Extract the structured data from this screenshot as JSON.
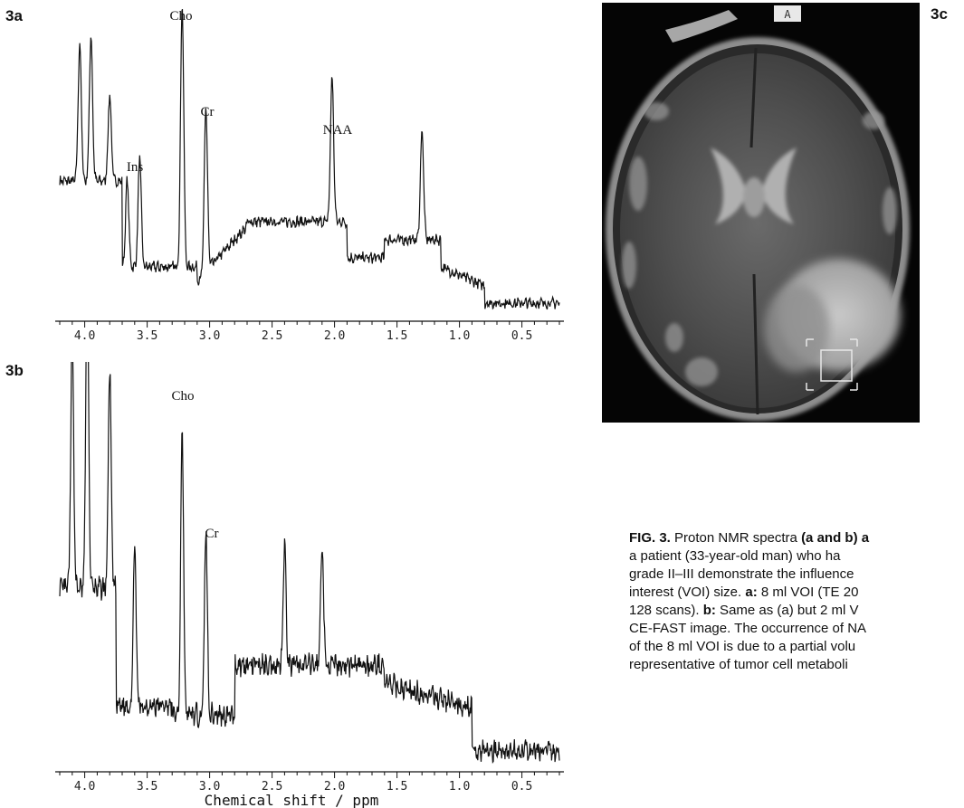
{
  "figure": {
    "panels": {
      "a": {
        "label": "3a"
      },
      "b": {
        "label": "3b"
      },
      "c": {
        "label": "3c",
        "image_marker": "A"
      }
    },
    "caption": {
      "line1": {
        "fig_label": "FIG. 3.",
        "text": " Proton NMR spectra ",
        "bold": "(a and b) a"
      },
      "line2": "a patient (33-year-old man) who ha",
      "line3": "grade II–III demonstrate the influence",
      "line4": {
        "pre": "interest (VOI) size. ",
        "a_label": "a:",
        "post": " 8 ml VOI (TE 20"
      },
      "line5": {
        "pre": "128 scans). ",
        "b_label": "b:",
        "post": " Same as (a) but 2 ml V"
      },
      "line6": "CE-FAST image. The occurrence of NA",
      "line7": "of the 8 ml VOI is due to a partial volu",
      "line8": "representative of tumor cell metaboli"
    }
  },
  "chart_data": [
    {
      "type": "line",
      "panel": "3a",
      "x_axis": {
        "reversed": true,
        "range": [
          4.2,
          0.2
        ],
        "ticks": [
          "4.0",
          "3.5",
          "3.0",
          "2.5",
          "2.0",
          "1.5",
          "1.0",
          "0.5"
        ],
        "label": ""
      },
      "peak_labels": [
        {
          "text": "Ins",
          "ppm": 3.56
        },
        {
          "text": "Cho",
          "ppm": 3.22
        },
        {
          "text": "Cr",
          "ppm": 3.03
        },
        {
          "text": "NAA",
          "ppm": 2.02
        }
      ],
      "peaks": [
        {
          "ppm": 4.04,
          "rel_intensity": 0.52
        },
        {
          "ppm": 3.95,
          "rel_intensity": 0.55
        },
        {
          "ppm": 3.8,
          "rel_intensity": 0.33
        },
        {
          "ppm": 3.66,
          "rel_intensity": 0.33
        },
        {
          "ppm": 3.56,
          "rel_intensity": 0.42
        },
        {
          "ppm": 3.22,
          "rel_intensity": 1.0
        },
        {
          "ppm": 3.03,
          "rel_intensity": 0.63
        },
        {
          "ppm": 2.02,
          "rel_intensity": 0.55
        },
        {
          "ppm": 1.3,
          "rel_intensity": 0.42
        }
      ]
    },
    {
      "type": "line",
      "panel": "3b",
      "x_axis": {
        "reversed": true,
        "range": [
          4.2,
          0.2
        ],
        "ticks": [
          "4.0",
          "3.5",
          "3.0",
          "2.5",
          "2.0",
          "1.5",
          "1.0",
          "0.5"
        ],
        "label": "Chemical shift / ppm"
      },
      "peak_labels": [
        {
          "text": "Cho",
          "ppm": 3.22
        },
        {
          "text": "Cr",
          "ppm": 3.03
        }
      ],
      "peaks": [
        {
          "ppm": 4.1,
          "rel_intensity": 0.8
        },
        {
          "ppm": 3.98,
          "rel_intensity": 1.0
        },
        {
          "ppm": 3.8,
          "rel_intensity": 0.68
        },
        {
          "ppm": 3.6,
          "rel_intensity": 0.5
        },
        {
          "ppm": 3.22,
          "rel_intensity": 0.88
        },
        {
          "ppm": 3.03,
          "rel_intensity": 0.58
        },
        {
          "ppm": 2.4,
          "rel_intensity": 0.38
        },
        {
          "ppm": 2.1,
          "rel_intensity": 0.38
        }
      ]
    }
  ]
}
